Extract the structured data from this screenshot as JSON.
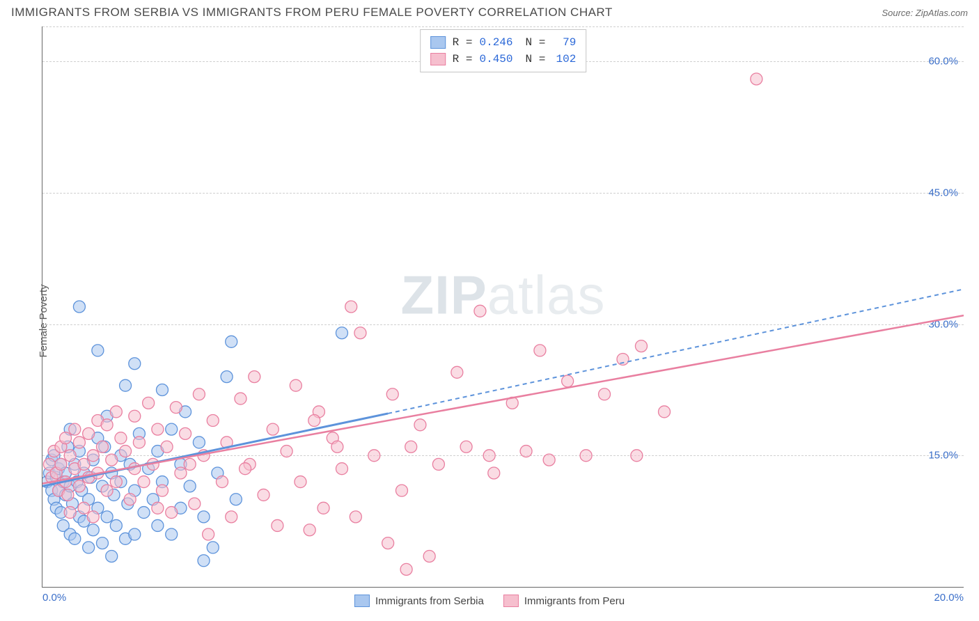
{
  "title": "IMMIGRANTS FROM SERBIA VS IMMIGRANTS FROM PERU FEMALE POVERTY CORRELATION CHART",
  "source_label": "Source: ",
  "source_name": "ZipAtlas.com",
  "ylabel": "Female Poverty",
  "watermark_bold": "ZIP",
  "watermark_light": "atlas",
  "chart": {
    "type": "scatter-correlation",
    "xlim": [
      0,
      20
    ],
    "ylim": [
      0,
      64
    ],
    "xtick_labels": [
      "0.0%",
      "20.0%"
    ],
    "ytick_values": [
      15,
      30,
      45,
      60
    ],
    "ytick_labels": [
      "15.0%",
      "30.0%",
      "45.0%",
      "60.0%"
    ],
    "background_color": "#ffffff",
    "grid_color": "#d0d0d0",
    "axis_color": "#666666",
    "tick_label_color": "#3b6fc9",
    "marker_radius": 8.5,
    "marker_opacity": 0.55,
    "series": [
      {
        "name": "Immigrants from Serbia",
        "color_fill": "#a9c7ef",
        "color_stroke": "#5d93db",
        "R": "0.246",
        "N": "79",
        "trend": {
          "x1": 0,
          "y1": 11.5,
          "x2_solid": 7.5,
          "y2_solid": 19.8,
          "x2_dash": 20,
          "y2_dash": 34,
          "dash": "6 5",
          "stroke_width": 2
        },
        "points": [
          [
            0.1,
            12
          ],
          [
            0.15,
            13
          ],
          [
            0.2,
            11
          ],
          [
            0.2,
            14.5
          ],
          [
            0.25,
            10
          ],
          [
            0.25,
            15
          ],
          [
            0.3,
            12.5
          ],
          [
            0.3,
            9
          ],
          [
            0.35,
            11
          ],
          [
            0.35,
            13.5
          ],
          [
            0.4,
            8.5
          ],
          [
            0.4,
            14
          ],
          [
            0.45,
            12
          ],
          [
            0.45,
            7
          ],
          [
            0.5,
            10.5
          ],
          [
            0.5,
            13
          ],
          [
            0.55,
            16
          ],
          [
            0.6,
            6
          ],
          [
            0.6,
            11.5
          ],
          [
            0.65,
            9.5
          ],
          [
            0.7,
            14
          ],
          [
            0.7,
            5.5
          ],
          [
            0.75,
            12
          ],
          [
            0.8,
            8
          ],
          [
            0.8,
            15.5
          ],
          [
            0.85,
            11
          ],
          [
            0.9,
            7.5
          ],
          [
            0.9,
            13
          ],
          [
            1.0,
            4.5
          ],
          [
            1.0,
            10
          ],
          [
            1.05,
            12.5
          ],
          [
            1.1,
            6.5
          ],
          [
            1.1,
            14.5
          ],
          [
            1.2,
            9
          ],
          [
            1.2,
            17
          ],
          [
            1.3,
            5
          ],
          [
            1.3,
            11.5
          ],
          [
            1.35,
            16
          ],
          [
            1.4,
            8
          ],
          [
            1.5,
            13
          ],
          [
            1.5,
            3.5
          ],
          [
            1.55,
            10.5
          ],
          [
            1.6,
            7
          ],
          [
            1.7,
            15
          ],
          [
            1.7,
            12
          ],
          [
            1.8,
            5.5
          ],
          [
            1.85,
            9.5
          ],
          [
            1.9,
            14
          ],
          [
            2.0,
            11
          ],
          [
            2.0,
            6
          ],
          [
            2.1,
            17.5
          ],
          [
            2.2,
            8.5
          ],
          [
            2.3,
            13.5
          ],
          [
            2.4,
            10
          ],
          [
            2.5,
            15.5
          ],
          [
            2.5,
            7
          ],
          [
            2.6,
            12
          ],
          [
            2.8,
            6
          ],
          [
            2.8,
            18
          ],
          [
            3.0,
            9
          ],
          [
            3.0,
            14
          ],
          [
            3.2,
            11.5
          ],
          [
            3.4,
            16.5
          ],
          [
            3.5,
            8
          ],
          [
            3.7,
            4.5
          ],
          [
            3.8,
            13
          ],
          [
            4.0,
            24
          ],
          [
            4.1,
            28
          ],
          [
            1.2,
            27
          ],
          [
            0.8,
            32
          ],
          [
            1.8,
            23
          ],
          [
            2.6,
            22.5
          ],
          [
            3.1,
            20
          ],
          [
            0.6,
            18
          ],
          [
            1.4,
            19.5
          ],
          [
            6.5,
            29
          ],
          [
            2.0,
            25.5
          ],
          [
            3.5,
            3
          ],
          [
            4.2,
            10
          ]
        ]
      },
      {
        "name": "Immigrants from Peru",
        "color_fill": "#f6bfce",
        "color_stroke": "#e97fa0",
        "R": "0.450",
        "N": "102",
        "trend": {
          "x1": 0,
          "y1": 11.8,
          "x2": 20,
          "y2": 31,
          "stroke_width": 2.5
        },
        "points": [
          [
            0.15,
            14
          ],
          [
            0.2,
            12.5
          ],
          [
            0.25,
            15.5
          ],
          [
            0.3,
            13
          ],
          [
            0.35,
            11
          ],
          [
            0.4,
            16
          ],
          [
            0.4,
            14
          ],
          [
            0.5,
            12
          ],
          [
            0.5,
            17
          ],
          [
            0.55,
            10.5
          ],
          [
            0.6,
            15
          ],
          [
            0.7,
            13.5
          ],
          [
            0.7,
            18
          ],
          [
            0.8,
            11.5
          ],
          [
            0.8,
            16.5
          ],
          [
            0.9,
            14
          ],
          [
            0.9,
            9
          ],
          [
            1.0,
            17.5
          ],
          [
            1.0,
            12.5
          ],
          [
            1.1,
            15
          ],
          [
            1.2,
            19
          ],
          [
            1.2,
            13
          ],
          [
            1.3,
            16
          ],
          [
            1.4,
            11
          ],
          [
            1.4,
            18.5
          ],
          [
            1.5,
            14.5
          ],
          [
            1.6,
            20
          ],
          [
            1.6,
            12
          ],
          [
            1.7,
            17
          ],
          [
            1.8,
            15.5
          ],
          [
            1.9,
            10
          ],
          [
            2.0,
            19.5
          ],
          [
            2.0,
            13.5
          ],
          [
            2.1,
            16.5
          ],
          [
            2.2,
            12
          ],
          [
            2.3,
            21
          ],
          [
            2.4,
            14
          ],
          [
            2.5,
            18
          ],
          [
            2.6,
            11
          ],
          [
            2.7,
            16
          ],
          [
            2.8,
            8.5
          ],
          [
            2.9,
            20.5
          ],
          [
            3.0,
            13
          ],
          [
            3.1,
            17.5
          ],
          [
            3.3,
            9.5
          ],
          [
            3.4,
            22
          ],
          [
            3.5,
            15
          ],
          [
            3.6,
            6
          ],
          [
            3.7,
            19
          ],
          [
            3.9,
            12
          ],
          [
            4.0,
            16.5
          ],
          [
            4.1,
            8
          ],
          [
            4.3,
            21.5
          ],
          [
            4.5,
            14
          ],
          [
            4.6,
            24
          ],
          [
            4.8,
            10.5
          ],
          [
            5.0,
            18
          ],
          [
            5.1,
            7
          ],
          [
            5.3,
            15.5
          ],
          [
            5.5,
            23
          ],
          [
            5.6,
            12
          ],
          [
            5.8,
            6.5
          ],
          [
            6.0,
            20
          ],
          [
            6.1,
            9
          ],
          [
            6.3,
            17
          ],
          [
            6.5,
            13.5
          ],
          [
            6.7,
            32
          ],
          [
            6.8,
            8
          ],
          [
            6.9,
            29
          ],
          [
            7.2,
            15
          ],
          [
            7.5,
            5
          ],
          [
            7.6,
            22
          ],
          [
            7.8,
            11
          ],
          [
            7.9,
            2
          ],
          [
            8.2,
            18.5
          ],
          [
            8.4,
            3.5
          ],
          [
            8.6,
            14
          ],
          [
            9.0,
            24.5
          ],
          [
            9.2,
            16
          ],
          [
            9.5,
            31.5
          ],
          [
            9.8,
            13
          ],
          [
            10.2,
            21
          ],
          [
            10.5,
            15.5
          ],
          [
            10.8,
            27
          ],
          [
            11.0,
            14.5
          ],
          [
            11.4,
            23.5
          ],
          [
            11.8,
            15
          ],
          [
            12.2,
            22
          ],
          [
            12.6,
            26
          ],
          [
            13.0,
            27.5
          ],
          [
            13.5,
            20
          ],
          [
            9.7,
            15
          ],
          [
            8.0,
            16
          ],
          [
            6.4,
            16
          ],
          [
            5.9,
            19
          ],
          [
            4.4,
            13.5
          ],
          [
            3.2,
            14
          ],
          [
            2.5,
            9
          ],
          [
            15.5,
            58
          ],
          [
            12.9,
            15
          ],
          [
            1.1,
            8
          ],
          [
            0.6,
            8.5
          ]
        ]
      }
    ]
  },
  "legend_top": {
    "r_label": "R =",
    "n_label": "N ="
  },
  "legend_bottom": {
    "series1": "Immigrants from Serbia",
    "series2": "Immigrants from Peru"
  }
}
